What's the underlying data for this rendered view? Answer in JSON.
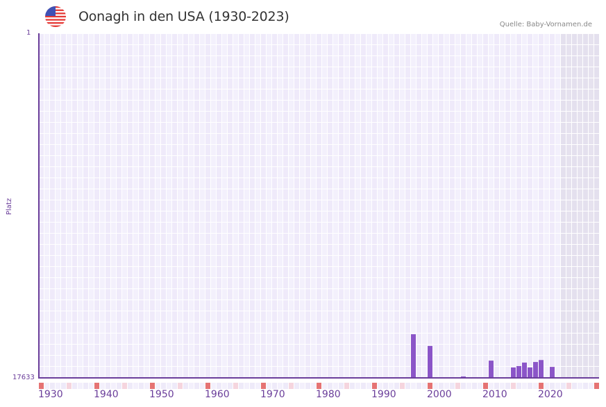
{
  "header": {
    "title": "Oonagh in den USA (1930-2023)",
    "source": "Quelle: Baby-Vornamen.de",
    "flag_icon": "us-flag-icon"
  },
  "colors": {
    "bar": "#8b55c8",
    "axis": "#6a3d9a",
    "grid_a": "#efeafa",
    "grid_b": "#f3f0fc",
    "future_shade": "#e4e0ee",
    "decade_marker": "#e57373",
    "half_decade_marker": "#f5d5de"
  },
  "chart_data": {
    "type": "bar",
    "title": "Oonagh in den USA (1930-2023)",
    "xlabel": "",
    "ylabel": "Platz",
    "y_inverted": true,
    "ylim": [
      17633,
      1
    ],
    "y_ticks": [
      "1",
      "17633"
    ],
    "x_range": [
      1930,
      2030
    ],
    "x_ticks": [
      "1930",
      "1940",
      "1950",
      "1960",
      "1970",
      "1980",
      "1990",
      "2000",
      "2010",
      "2020"
    ],
    "grid": true,
    "shaded_future_from": 2024,
    "categories": [
      1997,
      2000,
      2006,
      2011,
      2015,
      2016,
      2017,
      2018,
      2019,
      2020,
      2022
    ],
    "values": [
      15400,
      16000,
      17560,
      16750,
      17100,
      17030,
      16850,
      17100,
      16820,
      16720,
      17070
    ]
  },
  "yaxis": {
    "top": "1",
    "bottom": "17633",
    "title": "Platz"
  }
}
